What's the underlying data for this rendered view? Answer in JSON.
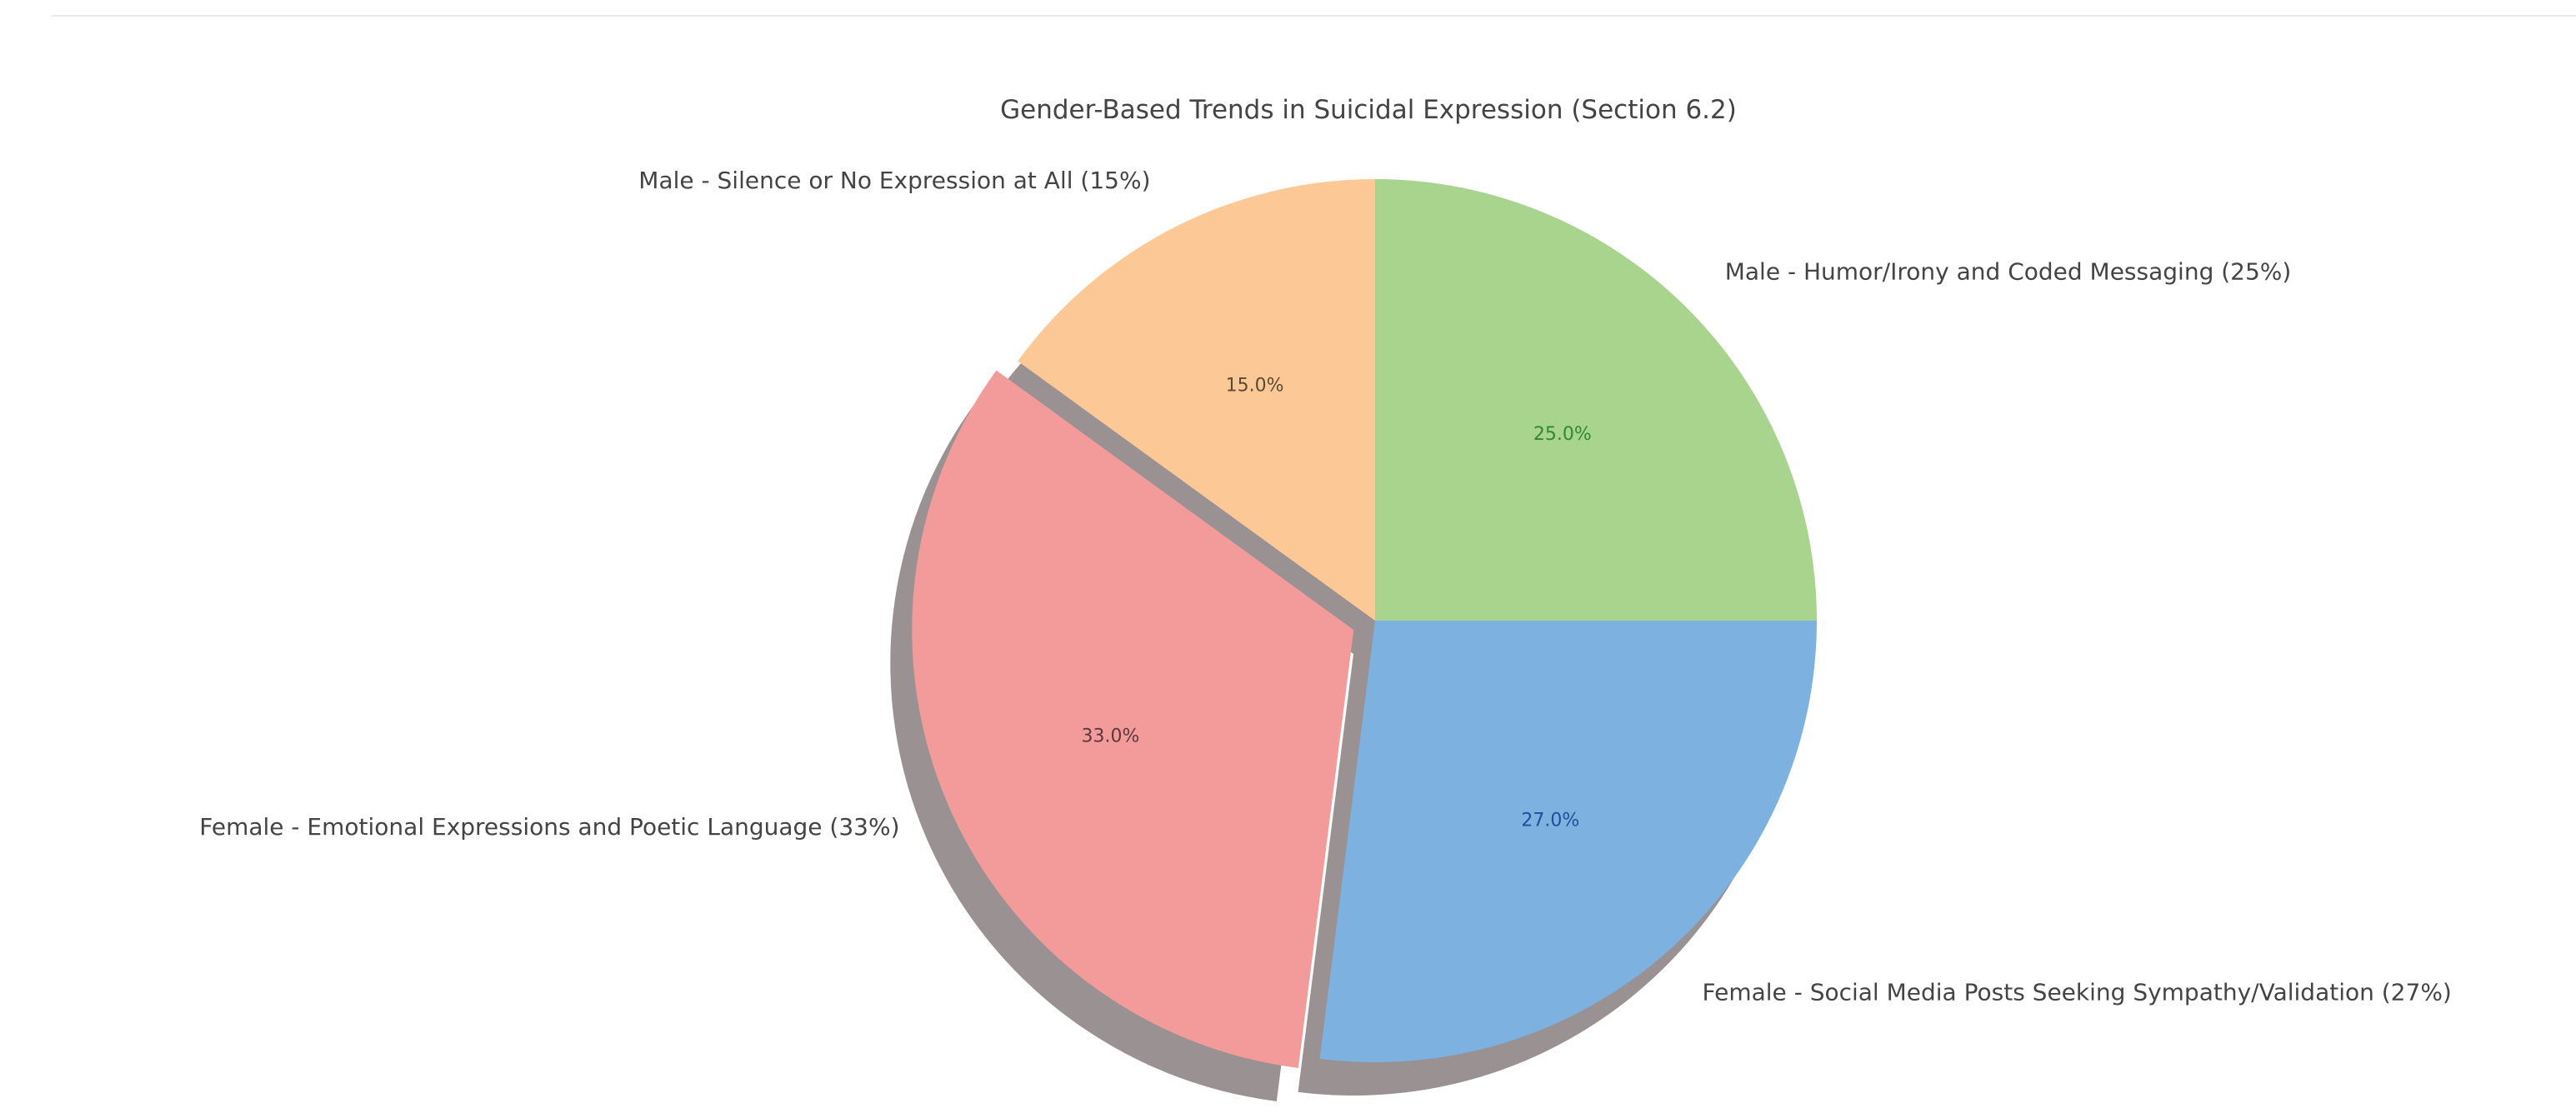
{
  "chart_data": {
    "type": "pie",
    "title": "Gender-Based Trends in Suicidal Expression (Section 6.2)",
    "slices": [
      {
        "label": "Male - Humor/Irony and Coded Messaging (25%)",
        "value": 25,
        "percent_label": "25.0%",
        "color": "#a9d48e",
        "percent_color": "#2e8b2e",
        "exploded": false
      },
      {
        "label": "Female - Social Media Posts Seeking Sympathy/Validation (27%)",
        "value": 27,
        "percent_label": "27.0%",
        "color": "#7cb1e0",
        "percent_color": "#1f4f9a",
        "exploded": false
      },
      {
        "label": "Female - Emotional Expressions and Poetic Language (33%)",
        "value": 33,
        "percent_label": "33.0%",
        "color": "#f39a9b",
        "percent_color": "#5a3a3a",
        "exploded": true
      },
      {
        "label": "Male - Silence or No Expression at All (15%)",
        "value": 15,
        "percent_label": "15.0%",
        "color": "#fcc996",
        "percent_color": "#5a4a3a",
        "exploded": false
      }
    ],
    "start_angle_deg": 90,
    "direction": "clockwise",
    "shadow": true,
    "shadow_color": "#9a9292",
    "legend": "none"
  }
}
